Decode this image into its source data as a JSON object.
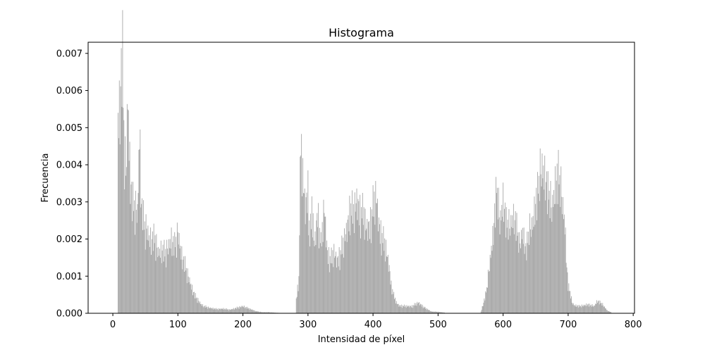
{
  "chart_data": {
    "type": "bar",
    "title": "Histograma",
    "xlabel": "Intensidad de píxel",
    "ylabel": "Frecuencia",
    "xlim": [
      -38,
      802
    ],
    "ylim": [
      0,
      0.0073
    ],
    "xticks": [
      0,
      100,
      200,
      300,
      400,
      500,
      600,
      700,
      800
    ],
    "yticks": [
      0.0,
      0.001,
      0.002,
      0.003,
      0.004,
      0.005,
      0.006,
      0.007
    ],
    "ytick_labels": [
      "0.000",
      "0.001",
      "0.002",
      "0.003",
      "0.004",
      "0.005",
      "0.006",
      "0.007"
    ],
    "bar_color": "#a9a9a9",
    "grid": false,
    "series": [
      {
        "segments": [
          {
            "x_start": 8,
            "x_end": 256,
            "anchors": [
              [
                8,
                0.0054
              ],
              [
                10,
                0.0057
              ],
              [
                13,
                0.0068
              ],
              [
                15,
                0.0071
              ],
              [
                17,
                0.0052
              ],
              [
                20,
                0.0039
              ],
              [
                23,
                0.0061
              ],
              [
                26,
                0.0042
              ],
              [
                30,
                0.0031
              ],
              [
                35,
                0.003
              ],
              [
                38,
                0.0028
              ],
              [
                41,
                0.0052
              ],
              [
                44,
                0.0031
              ],
              [
                48,
                0.0025
              ],
              [
                52,
                0.0024
              ],
              [
                56,
                0.0021
              ],
              [
                60,
                0.0021
              ],
              [
                65,
                0.0021
              ],
              [
                70,
                0.0017
              ],
              [
                75,
                0.0018
              ],
              [
                80,
                0.0017
              ],
              [
                86,
                0.0019
              ],
              [
                90,
                0.0021
              ],
              [
                95,
                0.0019
              ],
              [
                100,
                0.0023
              ],
              [
                105,
                0.0017
              ],
              [
                110,
                0.0014
              ],
              [
                115,
                0.0011
              ],
              [
                120,
                0.0008
              ],
              [
                126,
                0.0005
              ],
              [
                130,
                0.0004
              ],
              [
                136,
                0.00025
              ],
              [
                140,
                0.0002
              ],
              [
                150,
                0.00015
              ],
              [
                160,
                0.00012
              ],
              [
                170,
                0.00013
              ],
              [
                180,
                0.0001
              ],
              [
                190,
                0.00015
              ],
              [
                200,
                0.0002
              ],
              [
                210,
                0.00013
              ],
              [
                220,
                6e-05
              ],
              [
                230,
                3e-05
              ],
              [
                240,
                3e-05
              ],
              [
                256,
                1e-05
              ]
            ],
            "noise": [
              1.0,
              0.85,
              1.1,
              0.75,
              0.95,
              1.05,
              0.8,
              1.15,
              0.9,
              1.0,
              0.7,
              1.1,
              0.95,
              0.85,
              1.05,
              0.9
            ]
          },
          {
            "x_start": 282,
            "x_end": 510,
            "anchors": [
              [
                282,
                0.0004
              ],
              [
                286,
                0.001
              ],
              [
                289,
                0.005
              ],
              [
                292,
                0.0038
              ],
              [
                296,
                0.003
              ],
              [
                300,
                0.0035
              ],
              [
                303,
                0.002
              ],
              [
                306,
                0.003
              ],
              [
                310,
                0.0019
              ],
              [
                315,
                0.0029
              ],
              [
                320,
                0.0019
              ],
              [
                325,
                0.003
              ],
              [
                330,
                0.0017
              ],
              [
                335,
                0.0015
              ],
              [
                340,
                0.0017
              ],
              [
                345,
                0.0015
              ],
              [
                350,
                0.0017
              ],
              [
                355,
                0.002
              ],
              [
                360,
                0.0024
              ],
              [
                365,
                0.003
              ],
              [
                370,
                0.0028
              ],
              [
                375,
                0.0032
              ],
              [
                380,
                0.0029
              ],
              [
                385,
                0.0028
              ],
              [
                390,
                0.0024
              ],
              [
                395,
                0.0025
              ],
              [
                400,
                0.003
              ],
              [
                405,
                0.0033
              ],
              [
                410,
                0.0024
              ],
              [
                415,
                0.0021
              ],
              [
                420,
                0.0018
              ],
              [
                425,
                0.0013
              ],
              [
                428,
                0.0008
              ],
              [
                432,
                0.0005
              ],
              [
                436,
                0.0003
              ],
              [
                440,
                0.00022
              ],
              [
                450,
                0.0002
              ],
              [
                460,
                0.0002
              ],
              [
                470,
                0.0003
              ],
              [
                480,
                0.00015
              ],
              [
                490,
                5e-05
              ],
              [
                500,
                4e-05
              ],
              [
                510,
                2e-05
              ]
            ],
            "noise": [
              1.0,
              0.8,
              1.1,
              0.7,
              1.0,
              0.9,
              1.15,
              0.85,
              1.05,
              0.75,
              1.1,
              0.9,
              0.95,
              1.05,
              0.8,
              1.0
            ]
          },
          {
            "x_start": 566,
            "x_end": 766,
            "anchors": [
              [
                566,
                5e-05
              ],
              [
                570,
                0.0003
              ],
              [
                575,
                0.0007
              ],
              [
                580,
                0.0015
              ],
              [
                585,
                0.0023
              ],
              [
                590,
                0.0036
              ],
              [
                595,
                0.0025
              ],
              [
                600,
                0.0032
              ],
              [
                605,
                0.0026
              ],
              [
                610,
                0.0024
              ],
              [
                615,
                0.0027
              ],
              [
                620,
                0.0026
              ],
              [
                625,
                0.0019
              ],
              [
                630,
                0.0023
              ],
              [
                635,
                0.0018
              ],
              [
                640,
                0.0023
              ],
              [
                645,
                0.0025
              ],
              [
                650,
                0.0031
              ],
              [
                655,
                0.0037
              ],
              [
                660,
                0.0041
              ],
              [
                665,
                0.0038
              ],
              [
                670,
                0.0034
              ],
              [
                675,
                0.0029
              ],
              [
                680,
                0.0036
              ],
              [
                685,
                0.004
              ],
              [
                690,
                0.0033
              ],
              [
                695,
                0.0025
              ],
              [
                698,
                0.0013
              ],
              [
                700,
                0.0008
              ],
              [
                703,
                0.0006
              ],
              [
                706,
                0.0003
              ],
              [
                710,
                0.00022
              ],
              [
                720,
                0.0002
              ],
              [
                730,
                0.00025
              ],
              [
                740,
                0.0002
              ],
              [
                745,
                0.00035
              ],
              [
                750,
                0.0003
              ],
              [
                755,
                0.0002
              ],
              [
                760,
                8e-05
              ],
              [
                766,
                3e-05
              ]
            ],
            "noise": [
              1.0,
              0.85,
              1.1,
              0.8,
              0.95,
              1.05,
              0.75,
              1.1,
              0.9,
              1.0,
              0.8,
              1.15,
              0.95,
              0.85,
              1.05,
              0.9
            ]
          }
        ]
      }
    ]
  }
}
